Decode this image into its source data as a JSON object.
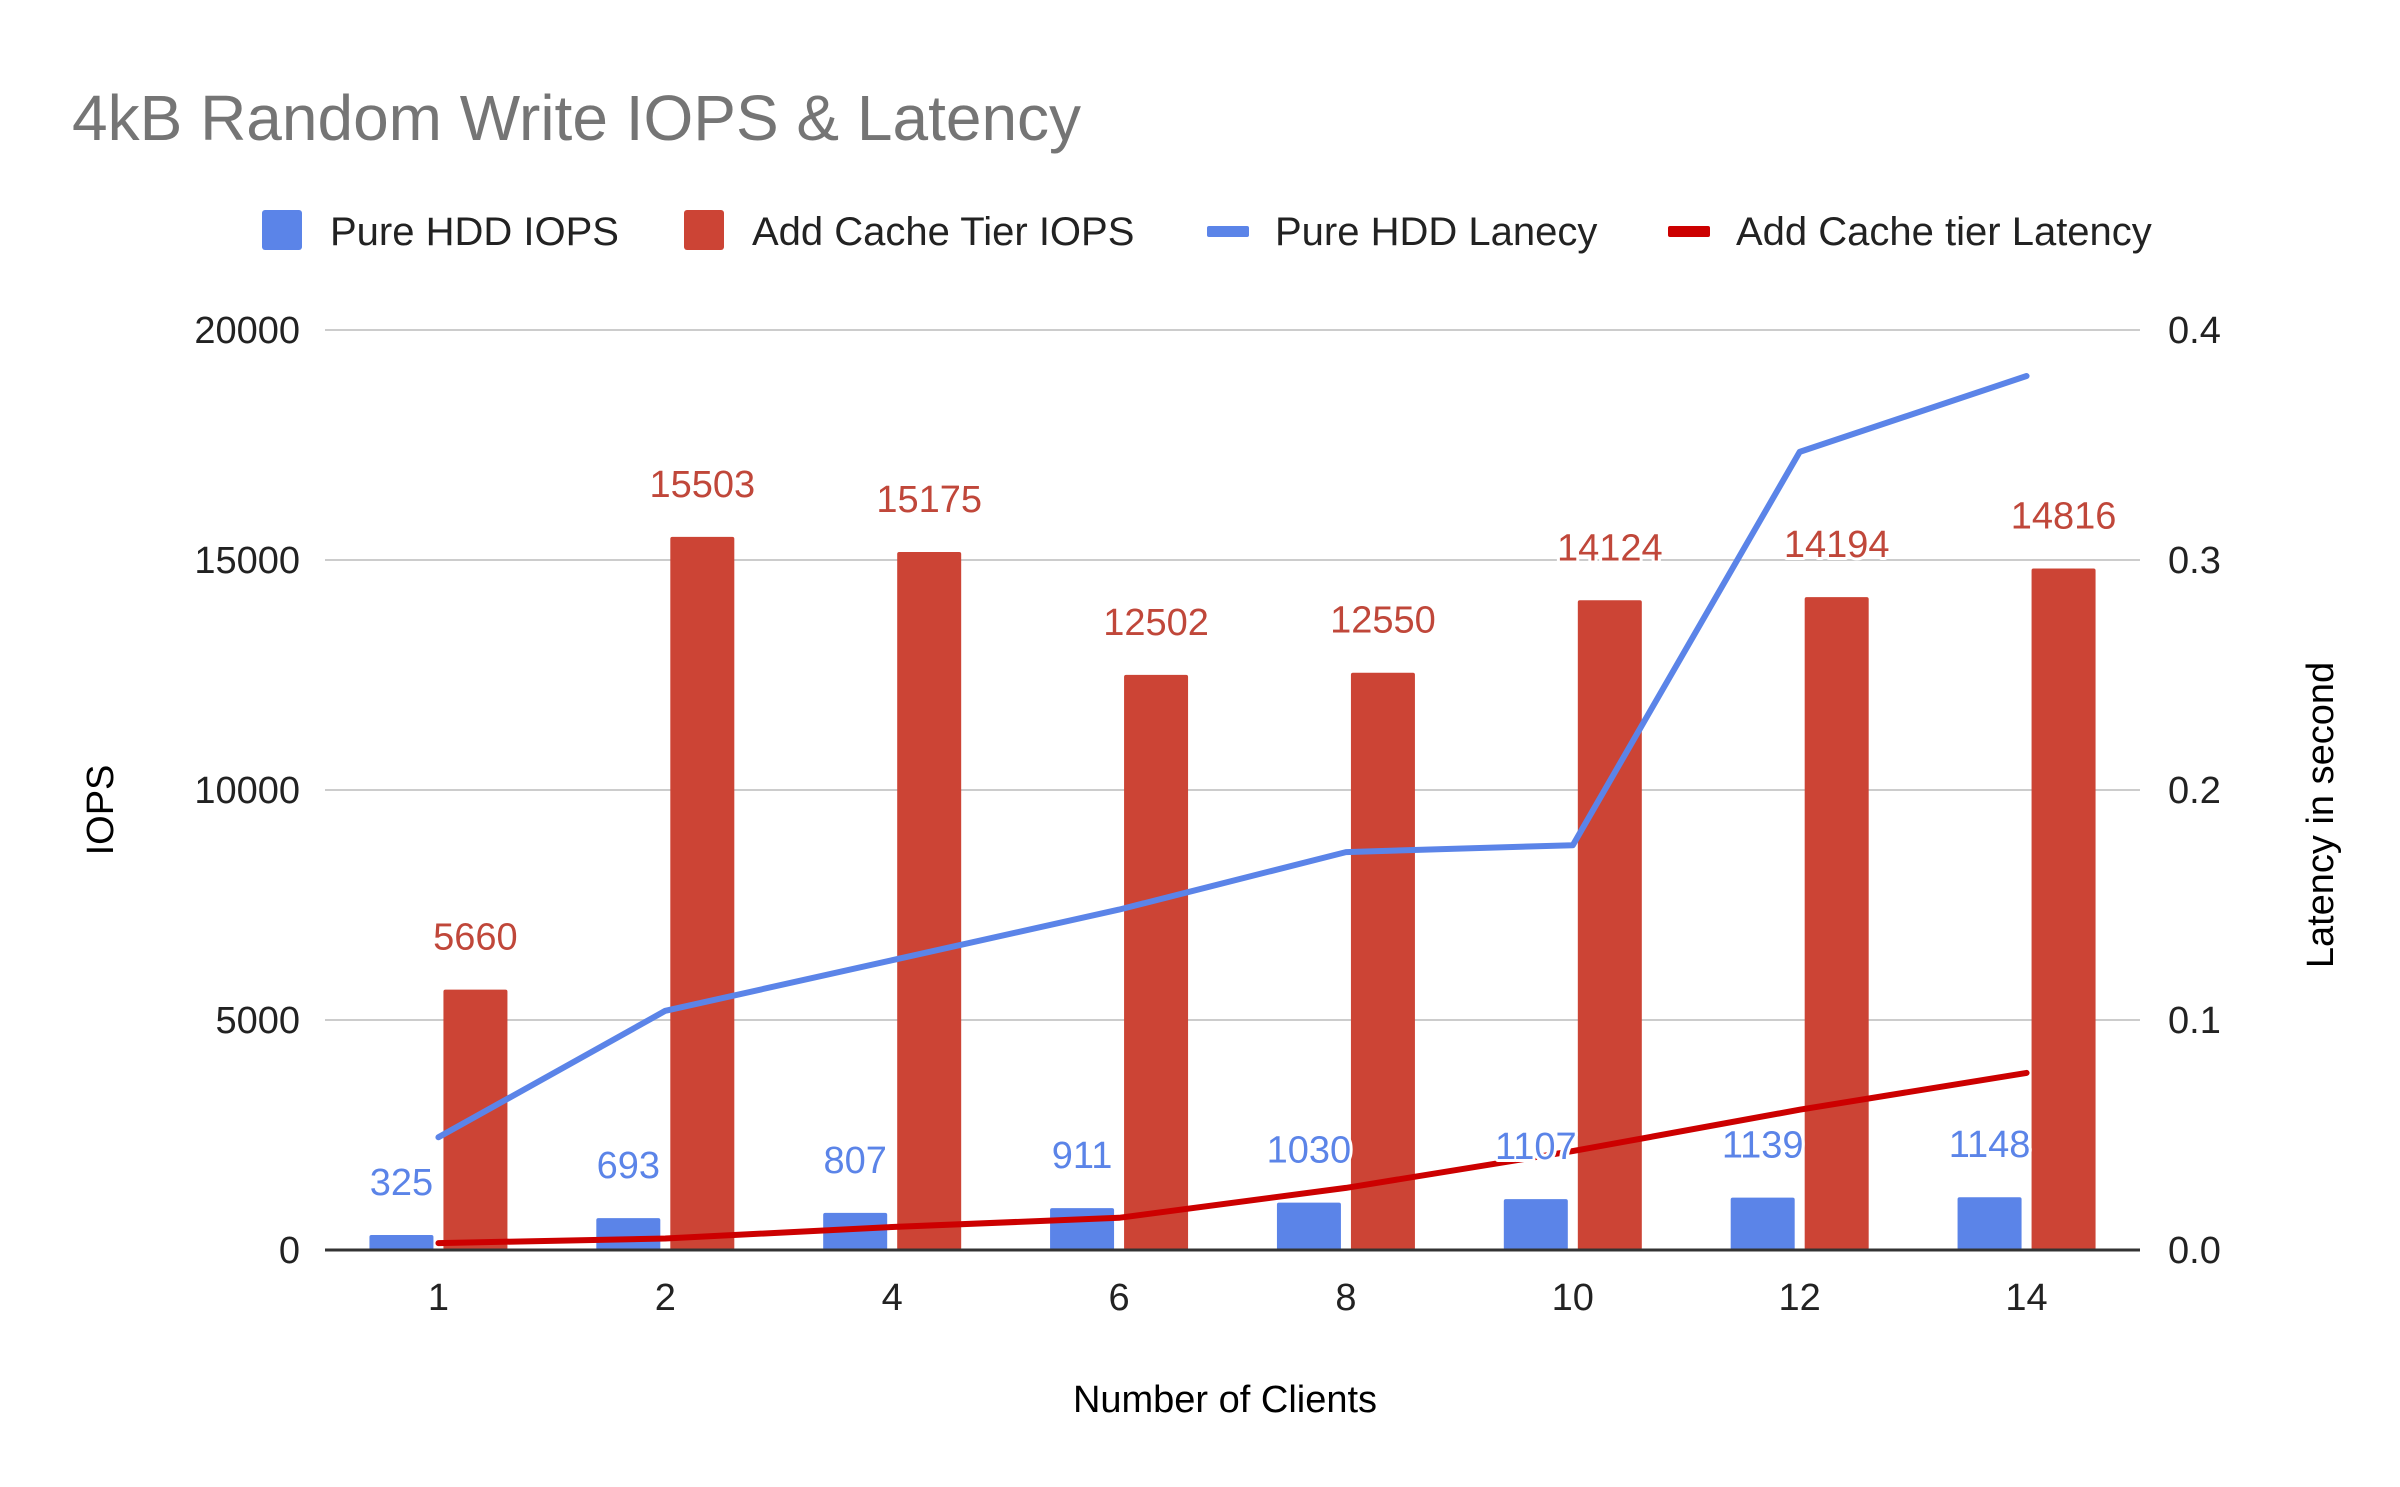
{
  "chart_data": {
    "type": "bar",
    "title": "4kB Random Write IOPS & Latency",
    "xlabel": "Number of Clients",
    "ylabel": "IOPS",
    "y2label": "Latency in second",
    "categories": [
      "1",
      "2",
      "4",
      "6",
      "8",
      "10",
      "12",
      "14"
    ],
    "ylim": [
      0,
      20000
    ],
    "yticks": [
      "0",
      "5000",
      "10000",
      "15000",
      "20000"
    ],
    "y2lim": [
      0,
      0.4
    ],
    "y2ticks": [
      "0.0",
      "0.1",
      "0.2",
      "0.3",
      "0.4"
    ],
    "grid": true,
    "legend_position": "top",
    "series": [
      {
        "name": "Pure HDD IOPS",
        "kind": "bar",
        "axis": "left",
        "color": "#5b84e8",
        "label_color": "#5b84e8",
        "values": [
          325,
          693,
          807,
          911,
          1030,
          1107,
          1139,
          1148
        ]
      },
      {
        "name": "Add Cache Tier IOPS",
        "kind": "bar",
        "axis": "left",
        "color": "#cc4435",
        "label_color": "#c0473a",
        "values": [
          5660,
          15503,
          15175,
          12502,
          12550,
          14124,
          14194,
          14816
        ]
      },
      {
        "name": "Pure HDD Lanecy",
        "kind": "line",
        "axis": "right",
        "color": "#5b84e8",
        "values": [
          0.049,
          0.104,
          0.126,
          0.148,
          0.173,
          0.176,
          0.347,
          0.38
        ]
      },
      {
        "name": "Add Cache tier Latency",
        "kind": "line",
        "axis": "right",
        "color": "#cc0000",
        "values": [
          0.003,
          0.005,
          0.01,
          0.014,
          0.027,
          0.043,
          0.061,
          0.077
        ]
      }
    ]
  }
}
